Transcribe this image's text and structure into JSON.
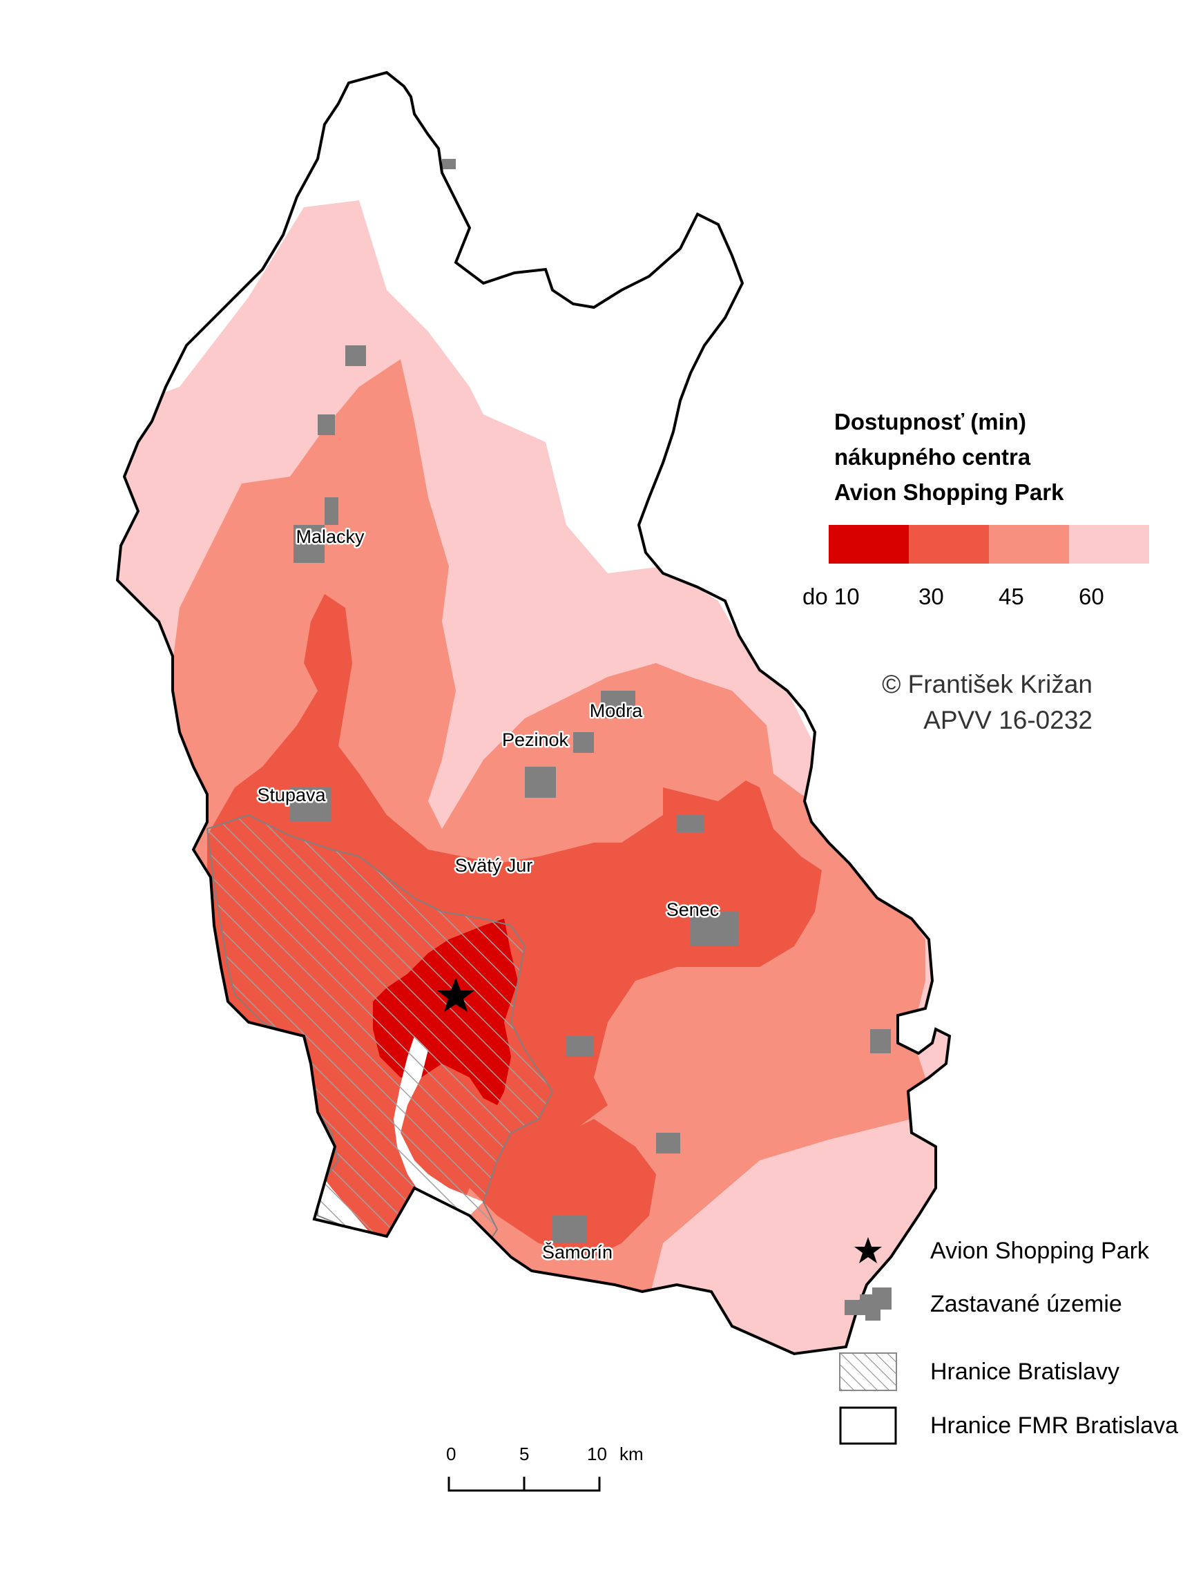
{
  "legend": {
    "title_lines": [
      "Dostupnosť (min)",
      "nákupného centra",
      "Avion Shopping Park"
    ],
    "classes": [
      {
        "label": "do 10",
        "color": "#d90000"
      },
      {
        "label": "30",
        "color": "#ee5744"
      },
      {
        "label": "45",
        "color": "#f7907f"
      },
      {
        "label": "60",
        "color": "#fccaca"
      }
    ],
    "symbols": [
      {
        "icon": "star-icon",
        "label": "Avion Shopping Park"
      },
      {
        "icon": "built-up-area-icon",
        "label": "Zastavané územie"
      },
      {
        "icon": "hatch-icon",
        "label": "Hranice Bratislavy"
      },
      {
        "icon": "boundary-icon",
        "label": "Hranice FMR Bratislava"
      }
    ]
  },
  "credit": {
    "author": "© František Križan",
    "project": "APVV 16-0232"
  },
  "cities": [
    "Malacky",
    "Modra",
    "Pezinok",
    "Stupava",
    "Svätý Jur",
    "Senec",
    "Šamorín"
  ],
  "scale_bar": {
    "ticks": [
      "0",
      "5",
      "10"
    ],
    "unit": "km"
  },
  "colors": {
    "built_up": "#808080",
    "boundary": "#000000",
    "hatch": "#a0a0a0"
  }
}
